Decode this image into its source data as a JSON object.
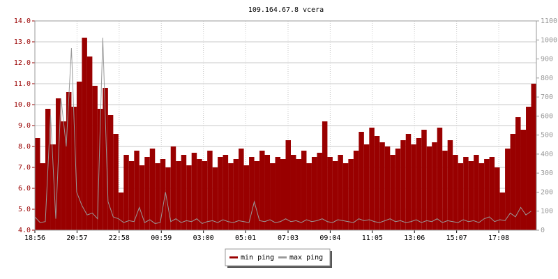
{
  "chart_data": {
    "type": "area-line",
    "title": "109.164.67.8 vcera",
    "xlim": [
      0,
      1440
    ],
    "xticks": [
      {
        "value": 0,
        "label": "18:56"
      },
      {
        "value": 121,
        "label": "20:57"
      },
      {
        "value": 242,
        "label": "22:58"
      },
      {
        "value": 363,
        "label": "00:59"
      },
      {
        "value": 484,
        "label": "03:00"
      },
      {
        "value": 605,
        "label": "05:01"
      },
      {
        "value": 727,
        "label": "07:03"
      },
      {
        "value": 848,
        "label": "09:04"
      },
      {
        "value": 969,
        "label": "11:05"
      },
      {
        "value": 1090,
        "label": "13:06"
      },
      {
        "value": 1211,
        "label": "15:07"
      },
      {
        "value": 1332,
        "label": "17:08"
      }
    ],
    "ylim": [
      4,
      14
    ],
    "yticks": [
      {
        "value": 4,
        "label": "4.0"
      },
      {
        "value": 5,
        "label": "5.0"
      },
      {
        "value": 6,
        "label": "6.0"
      },
      {
        "value": 7,
        "label": "7.0"
      },
      {
        "value": 8,
        "label": "8.0"
      },
      {
        "value": 9,
        "label": "9.0"
      },
      {
        "value": 10,
        "label": "10.0"
      },
      {
        "value": 11,
        "label": "11.0"
      },
      {
        "value": 12,
        "label": "12.0"
      },
      {
        "value": 13,
        "label": "13.0"
      },
      {
        "value": 14,
        "label": "14.0"
      }
    ],
    "y2lim": [
      0,
      1100
    ],
    "y2ticks": [
      0,
      100,
      200,
      300,
      400,
      500,
      600,
      700,
      800,
      900,
      1000,
      1100
    ],
    "grid": true,
    "x": [
      0,
      15,
      30,
      45,
      60,
      75,
      90,
      105,
      120,
      135,
      150,
      165,
      180,
      195,
      210,
      225,
      240,
      255,
      270,
      285,
      300,
      315,
      330,
      345,
      360,
      375,
      390,
      405,
      420,
      435,
      450,
      465,
      480,
      495,
      510,
      525,
      540,
      555,
      570,
      585,
      600,
      615,
      630,
      645,
      660,
      675,
      690,
      705,
      720,
      735,
      750,
      765,
      780,
      795,
      810,
      825,
      840,
      855,
      870,
      885,
      900,
      915,
      930,
      945,
      960,
      975,
      990,
      1005,
      1020,
      1035,
      1050,
      1065,
      1080,
      1095,
      1110,
      1125,
      1140,
      1155,
      1170,
      1185,
      1200,
      1215,
      1230,
      1245,
      1260,
      1275,
      1290,
      1305,
      1320,
      1335,
      1350,
      1365,
      1380,
      1395,
      1410,
      1425
    ],
    "series": [
      {
        "name": "min ping",
        "color": "#990000",
        "values": [
          8.4,
          7.2,
          9.8,
          8.1,
          10.3,
          9.2,
          10.6,
          9.9,
          11.1,
          13.2,
          12.3,
          10.9,
          9.8,
          10.8,
          9.5,
          8.6,
          5.8,
          7.6,
          7.3,
          7.8,
          7.1,
          7.5,
          7.9,
          7.2,
          7.4,
          7.0,
          8.0,
          7.3,
          7.6,
          7.1,
          7.7,
          7.4,
          7.3,
          7.8,
          7.0,
          7.5,
          7.6,
          7.2,
          7.4,
          7.9,
          7.1,
          7.5,
          7.3,
          7.8,
          7.6,
          7.2,
          7.5,
          7.4,
          8.3,
          7.6,
          7.4,
          7.8,
          7.2,
          7.5,
          7.7,
          9.2,
          7.5,
          7.3,
          7.6,
          7.2,
          7.4,
          7.8,
          8.7,
          8.1,
          8.9,
          8.5,
          8.2,
          8.0,
          7.6,
          7.9,
          8.3,
          8.6,
          8.1,
          8.4,
          8.8,
          8.0,
          8.2,
          8.9,
          7.8,
          8.3,
          7.6,
          7.2,
          7.5,
          7.3,
          7.6,
          7.2,
          7.4,
          7.5,
          7.0,
          5.8,
          7.9,
          8.6,
          9.4,
          8.8,
          9.9,
          11.0
        ]
      },
      {
        "name": "max ping",
        "color": "#999999",
        "axis": "y2",
        "values": [
          70,
          40,
          45,
          605,
          60,
          693,
          440,
          957,
          200,
          130,
          80,
          90,
          60,
          1012,
          150,
          70,
          60,
          40,
          50,
          45,
          120,
          40,
          55,
          35,
          40,
          200,
          45,
          60,
          40,
          50,
          45,
          60,
          35,
          45,
          50,
          40,
          55,
          45,
          40,
          50,
          45,
          40,
          150,
          50,
          45,
          55,
          40,
          45,
          60,
          45,
          50,
          40,
          55,
          45,
          50,
          60,
          45,
          40,
          55,
          50,
          45,
          40,
          60,
          50,
          55,
          45,
          40,
          50,
          60,
          45,
          50,
          40,
          45,
          55,
          40,
          50,
          45,
          60,
          40,
          50,
          45,
          40,
          55,
          45,
          50,
          40,
          60,
          70,
          45,
          55,
          50,
          90,
          70,
          120,
          80,
          100
        ]
      }
    ]
  }
}
